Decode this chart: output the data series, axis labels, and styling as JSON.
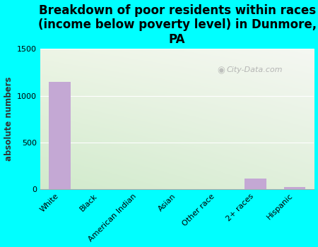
{
  "title": "Breakdown of poor residents within races\n(income below poverty level) in Dunmore,\nPA",
  "ylabel": "absolute numbers",
  "categories": [
    "White",
    "Black",
    "American Indian",
    "Asian",
    "Other race",
    "2+ races",
    "Hispanic"
  ],
  "values": [
    1150,
    0,
    0,
    0,
    0,
    110,
    20
  ],
  "bar_color": "#c4a8d4",
  "background_color": "#00ffff",
  "plot_bg_topleft": "#e8ede0",
  "plot_bg_topright": "#f5f5f0",
  "plot_bg_bottom": "#d0e8c8",
  "ylim": [
    0,
    1500
  ],
  "yticks": [
    0,
    500,
    1000,
    1500
  ],
  "watermark": "City-Data.com",
  "title_fontsize": 12,
  "label_fontsize": 8.5,
  "tick_fontsize": 8
}
